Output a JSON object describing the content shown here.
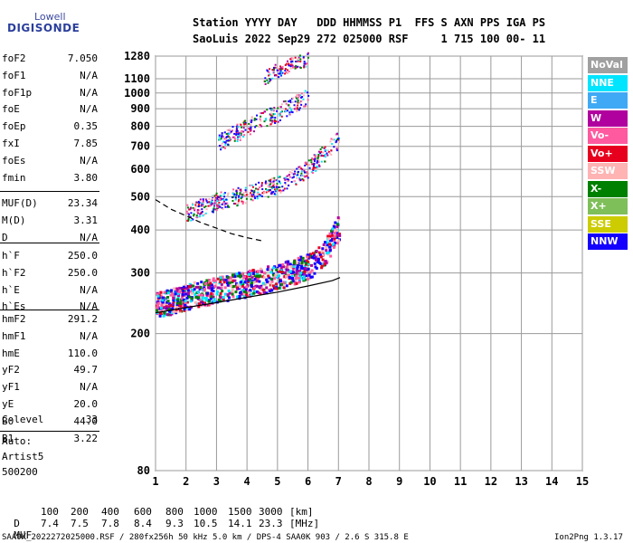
{
  "logo": {
    "top": "Lowell",
    "main": "DIGISONDE"
  },
  "header": {
    "line1": "Station YYYY DAY   DDD HHMMSS P1  FFS S AXN PPS IGA PS",
    "line2": "SaoLuis 2022 Sep29 272 025000 RSF     1 715 100 00- 11"
  },
  "params_group1": [
    {
      "name": "foF2",
      "value": "7.050"
    },
    {
      "name": "foF1",
      "value": "N/A"
    },
    {
      "name": "foF1p",
      "value": "N/A"
    },
    {
      "name": "foE",
      "value": "N/A"
    },
    {
      "name": "foEp",
      "value": "0.35"
    },
    {
      "name": "fxI",
      "value": "7.85"
    },
    {
      "name": "foEs",
      "value": "N/A"
    },
    {
      "name": "fmin",
      "value": "3.80"
    }
  ],
  "params_group2": [
    {
      "name": "MUF(D)",
      "value": "23.34"
    },
    {
      "name": "M(D)",
      "value": "3.31"
    },
    {
      "name": "D",
      "value": "N/A"
    }
  ],
  "params_group3": [
    {
      "name": "h`F",
      "value": "250.0"
    },
    {
      "name": "h`F2",
      "value": "250.0"
    },
    {
      "name": "h`E",
      "value": "N/A"
    },
    {
      "name": "h`Es",
      "value": "N/A"
    }
  ],
  "params_group4": [
    {
      "name": "hmF2",
      "value": "291.2"
    },
    {
      "name": "hmF1",
      "value": "N/A"
    },
    {
      "name": "hmE",
      "value": "110.0"
    },
    {
      "name": "yF2",
      "value": "49.7"
    },
    {
      "name": "yF1",
      "value": "N/A"
    },
    {
      "name": "yE",
      "value": "20.0"
    },
    {
      "name": "B0",
      "value": "44.0"
    },
    {
      "name": "B1",
      "value": "3.22"
    }
  ],
  "clevel": {
    "name": "C-level",
    "value": "33"
  },
  "auto": {
    "line1": "Auto:",
    "line2": "Artist5",
    "line3": "500200"
  },
  "legend": [
    {
      "label": "NoVal",
      "color": "#a0a0a0"
    },
    {
      "label": "NNE",
      "color": "#00e5ff"
    },
    {
      "label": "E",
      "color": "#3fa9f5"
    },
    {
      "label": "W",
      "color": "#b0009e"
    },
    {
      "label": "Vo-",
      "color": "#ff5aa0"
    },
    {
      "label": "Vo+",
      "color": "#e6001e"
    },
    {
      "label": "SSW",
      "color": "#ffb3b3"
    },
    {
      "label": "X-",
      "color": "#008000"
    },
    {
      "label": "X+",
      "color": "#7fbf5a"
    },
    {
      "label": "SSE",
      "color": "#cccc00"
    },
    {
      "label": "NNW",
      "color": "#1400ff"
    }
  ],
  "muf_table": {
    "d_label": "D",
    "d_values": [
      "100",
      "200",
      "400",
      "600",
      "800",
      "1000",
      "1500",
      "3000"
    ],
    "d_unit": "[km]",
    "muf_label": "MUF",
    "muf_values": [
      "7.4",
      "7.5",
      "7.8",
      "8.4",
      "9.3",
      "10.5",
      "14.1",
      "23.3"
    ],
    "muf_unit": "[MHz]"
  },
  "footer": {
    "left": "SAA0K_2022272025000.RSF / 280fx256h 50 kHz 5.0 km / DPS-4 SAA0K 903 / 2.6 S 315.8 E",
    "right": "Ion2Png 1.3.17"
  },
  "chart_data": {
    "type": "scatter",
    "xlabel": "",
    "ylabel": "",
    "xlim": [
      1,
      15
    ],
    "ylim": [
      80,
      1280
    ],
    "x_ticks": [
      1,
      2,
      3,
      4,
      5,
      6,
      7,
      8,
      9,
      10,
      11,
      12,
      13,
      14,
      15
    ],
    "y_ticks": [
      80,
      200,
      300,
      400,
      500,
      600,
      700,
      800,
      900,
      1000,
      1100,
      1280
    ],
    "grid": true,
    "legend_position": "right",
    "y_scale": "log",
    "traces": [
      {
        "name": "o-trace 1st hop",
        "x": [
          1.0,
          2.0,
          3.0,
          4.0,
          5.0,
          6.0,
          6.5,
          7.0
        ],
        "y": [
          235,
          250,
          262,
          272,
          285,
          305,
          330,
          400
        ]
      },
      {
        "name": "2nd hop",
        "x": [
          2.0,
          3.0,
          4.0,
          5.0,
          6.0,
          7.0
        ],
        "y": [
          440,
          475,
          500,
          530,
          590,
          720
        ]
      },
      {
        "name": "3rd hop",
        "x": [
          3.0,
          4.0,
          5.0,
          6.0
        ],
        "y": [
          700,
          780,
          860,
          960
        ]
      },
      {
        "name": "4th hop",
        "x": [
          4.5,
          5.0,
          5.5,
          6.0
        ],
        "y": [
          1080,
          1150,
          1200,
          1230
        ]
      }
    ],
    "profile_curve": {
      "x": [
        1.0,
        2.0,
        3.0,
        4.0,
        5.0,
        6.0,
        6.8,
        7.05
      ],
      "y": [
        230,
        238,
        246,
        255,
        264,
        275,
        285,
        291
      ]
    },
    "extrapolated_curve": {
      "x": [
        1.0,
        1.5,
        2.0,
        2.5,
        3.0,
        3.5,
        4.0,
        4.5
      ],
      "y": [
        490,
        460,
        440,
        420,
        405,
        390,
        380,
        372
      ]
    }
  }
}
